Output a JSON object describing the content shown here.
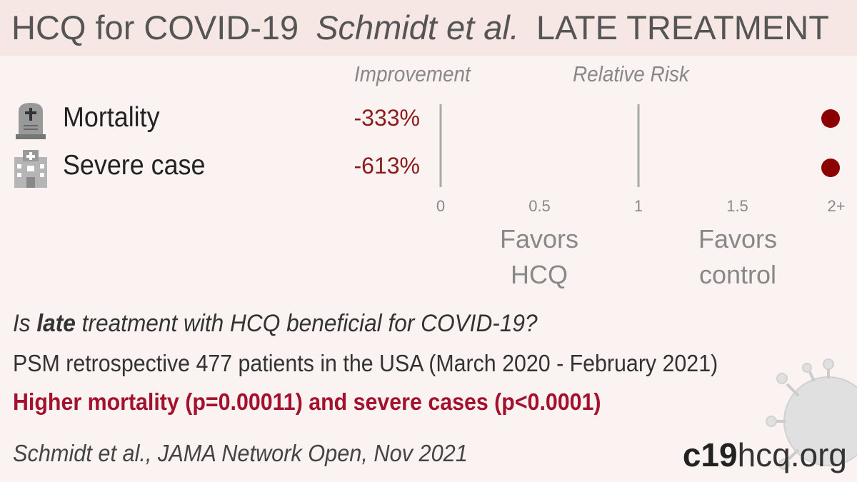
{
  "header": {
    "topic": "HCQ for COVID-19",
    "study": "Schmidt et al.",
    "stage": "LATE TREATMENT"
  },
  "columns": {
    "improvement": "Improvement",
    "relative_risk": "Relative Risk"
  },
  "chart_data": {
    "type": "forest",
    "x_axis": {
      "ticks": [
        "0",
        "0.5",
        "1",
        "1.5",
        "2+"
      ],
      "tick_values": [
        0,
        0.5,
        1,
        1.5,
        2
      ],
      "range": [
        0,
        2
      ]
    },
    "rows": [
      {
        "label": "Mortality",
        "improvement": "-333%",
        "rr": 4.33,
        "icon": "tombstone-icon"
      },
      {
        "label": "Severe case",
        "improvement": "-613%",
        "rr": 7.13,
        "icon": "hospital-icon"
      }
    ],
    "favors_left": [
      "Favors",
      "HCQ"
    ],
    "favors_right": [
      "Favors",
      "control"
    ],
    "point_color": "#8b0000"
  },
  "summary": {
    "question_prefix": "Is ",
    "question_bold": "late",
    "question_suffix": " treatment with HCQ beneficial for COVID-19?",
    "study_line": "PSM retrospective 477 patients in the USA (March 2020 - February 2021)",
    "conclusion": "Higher mortality (p=0.00011) and severe cases (p<0.0001)",
    "citation": "Schmidt et al., JAMA Network Open, Nov 2021"
  },
  "brand": {
    "bold": "c19",
    "rest": "hcq.org"
  }
}
